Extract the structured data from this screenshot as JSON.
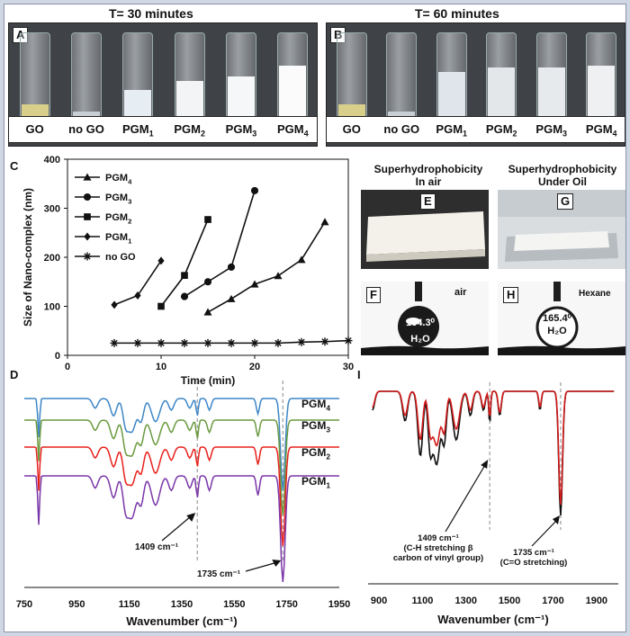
{
  "panel_a": {
    "letter": "A",
    "title": "T= 30 minutes",
    "vials": [
      {
        "name": "GO",
        "sub": "",
        "liquid": "#d8cf8a",
        "level": 0.18
      },
      {
        "name": "no GO",
        "sub": "",
        "liquid": "#c8cfd4",
        "level": 0.1
      },
      {
        "name": "PGM",
        "sub": "1",
        "liquid": "#e6eef4",
        "level": 0.35
      },
      {
        "name": "PGM",
        "sub": "2",
        "liquid": "#f2f4f6",
        "level": 0.45
      },
      {
        "name": "PGM",
        "sub": "3",
        "liquid": "#f6f7f8",
        "level": 0.5
      },
      {
        "name": "PGM",
        "sub": "4",
        "liquid": "#fbfbfb",
        "level": 0.62
      }
    ]
  },
  "panel_b": {
    "letter": "B",
    "title": "T= 60 minutes",
    "vials": [
      {
        "name": "GO",
        "sub": "",
        "liquid": "#d8cf8a",
        "level": 0.18
      },
      {
        "name": "no GO",
        "sub": "",
        "liquid": "#c8cfd4",
        "level": 0.1
      },
      {
        "name": "PGM",
        "sub": "1",
        "liquid": "#dfe5ea",
        "level": 0.55
      },
      {
        "name": "PGM",
        "sub": "2",
        "liquid": "#e3e7ea",
        "level": 0.6
      },
      {
        "name": "PGM",
        "sub": "3",
        "liquid": "#e7eaec",
        "level": 0.6
      },
      {
        "name": "PGM",
        "sub": "4",
        "liquid": "#eef0f1",
        "level": 0.62
      }
    ]
  },
  "panel_c": {
    "letter": "C",
    "chart_data": {
      "type": "line",
      "xlabel": "Time (min)",
      "ylabel": "Size of Nano-complex (nm)",
      "xlim": [
        0,
        30
      ],
      "ylim": [
        0,
        400
      ],
      "xticks": [
        0,
        10,
        20,
        30
      ],
      "yticks": [
        0,
        100,
        200,
        300,
        400
      ],
      "series": [
        {
          "name": "PGM4",
          "label": "PGM",
          "sub": "4",
          "marker": "triangle",
          "x": [
            15,
            17.5,
            20,
            22.5,
            25,
            27.5
          ],
          "y": [
            88,
            115,
            145,
            162,
            195,
            272
          ]
        },
        {
          "name": "PGM3",
          "label": "PGM",
          "sub": "3",
          "marker": "circle",
          "x": [
            12.5,
            15,
            17.5,
            20
          ],
          "y": [
            120,
            150,
            180,
            336
          ]
        },
        {
          "name": "PGM2",
          "label": "PGM",
          "sub": "2",
          "marker": "square",
          "x": [
            10,
            12.5,
            15
          ],
          "y": [
            100,
            163,
            277
          ]
        },
        {
          "name": "PGM1",
          "label": "PGM",
          "sub": "1",
          "marker": "diamond",
          "x": [
            5,
            7.5,
            10
          ],
          "y": [
            103,
            122,
            193
          ]
        },
        {
          "name": "no GO",
          "label": "no GO",
          "sub": "",
          "marker": "star",
          "x": [
            5,
            7.5,
            10,
            12.5,
            15,
            17.5,
            20,
            22.5,
            25,
            27.5,
            30
          ],
          "y": [
            25,
            25,
            25,
            25,
            25,
            25,
            25,
            25,
            27,
            28,
            30
          ]
        }
      ]
    }
  },
  "panel_right": {
    "heading_air": "Superhydrophobicity",
    "heading_air2": "In air",
    "heading_oil": "Superhydrophobicity",
    "heading_oil2": "Under Oil",
    "e": {
      "letter": "E"
    },
    "g": {
      "letter": "G"
    },
    "f": {
      "letter": "F",
      "medium": "air",
      "angle": "164.3⁰",
      "drop": "H₂O"
    },
    "h": {
      "letter": "H",
      "medium": "Hexane",
      "angle": "165.4⁰",
      "drop": "H₂O"
    }
  },
  "panel_d": {
    "letter": "D",
    "chart_data": {
      "type": "line",
      "xlabel": "Wavenumber (cm⁻¹)",
      "xlim": [
        750,
        1950
      ],
      "xticks": [
        750,
        950,
        1150,
        1350,
        1550,
        1750,
        1950
      ],
      "series": [
        {
          "name": "PGM4",
          "label": "PGM",
          "sub": "4",
          "color": "#3d86c6"
        },
        {
          "name": "PGM3",
          "label": "PGM",
          "sub": "3",
          "color": "#6a9a3e"
        },
        {
          "name": "PGM2",
          "label": "PGM",
          "sub": "2",
          "color": "#e8211c"
        },
        {
          "name": "PGM1",
          "label": "PGM",
          "sub": "1",
          "color": "#7a36a8"
        }
      ],
      "markers": [
        1409,
        1735
      ],
      "annotations": [
        "1409 cm⁻¹",
        "1735 cm⁻¹"
      ]
    }
  },
  "panel_i": {
    "letter": "I",
    "chart_data": {
      "type": "line",
      "xlabel": "Wavenumber (cm⁻¹)",
      "xlim": [
        850,
        2000
      ],
      "xticks": [
        900,
        1100,
        1300,
        1500,
        1700,
        1900
      ],
      "series": [
        {
          "name": "black",
          "color": "#111111"
        },
        {
          "name": "red",
          "color": "#d21a1a"
        }
      ],
      "markers": [
        1409,
        1735
      ],
      "annotation_1409": [
        "1409 cm⁻¹",
        "(C-H stretching β",
        "carbon of vinyl group)"
      ],
      "annotation_1735": [
        "1735 cm⁻¹",
        "(C=O stretching)"
      ]
    }
  }
}
